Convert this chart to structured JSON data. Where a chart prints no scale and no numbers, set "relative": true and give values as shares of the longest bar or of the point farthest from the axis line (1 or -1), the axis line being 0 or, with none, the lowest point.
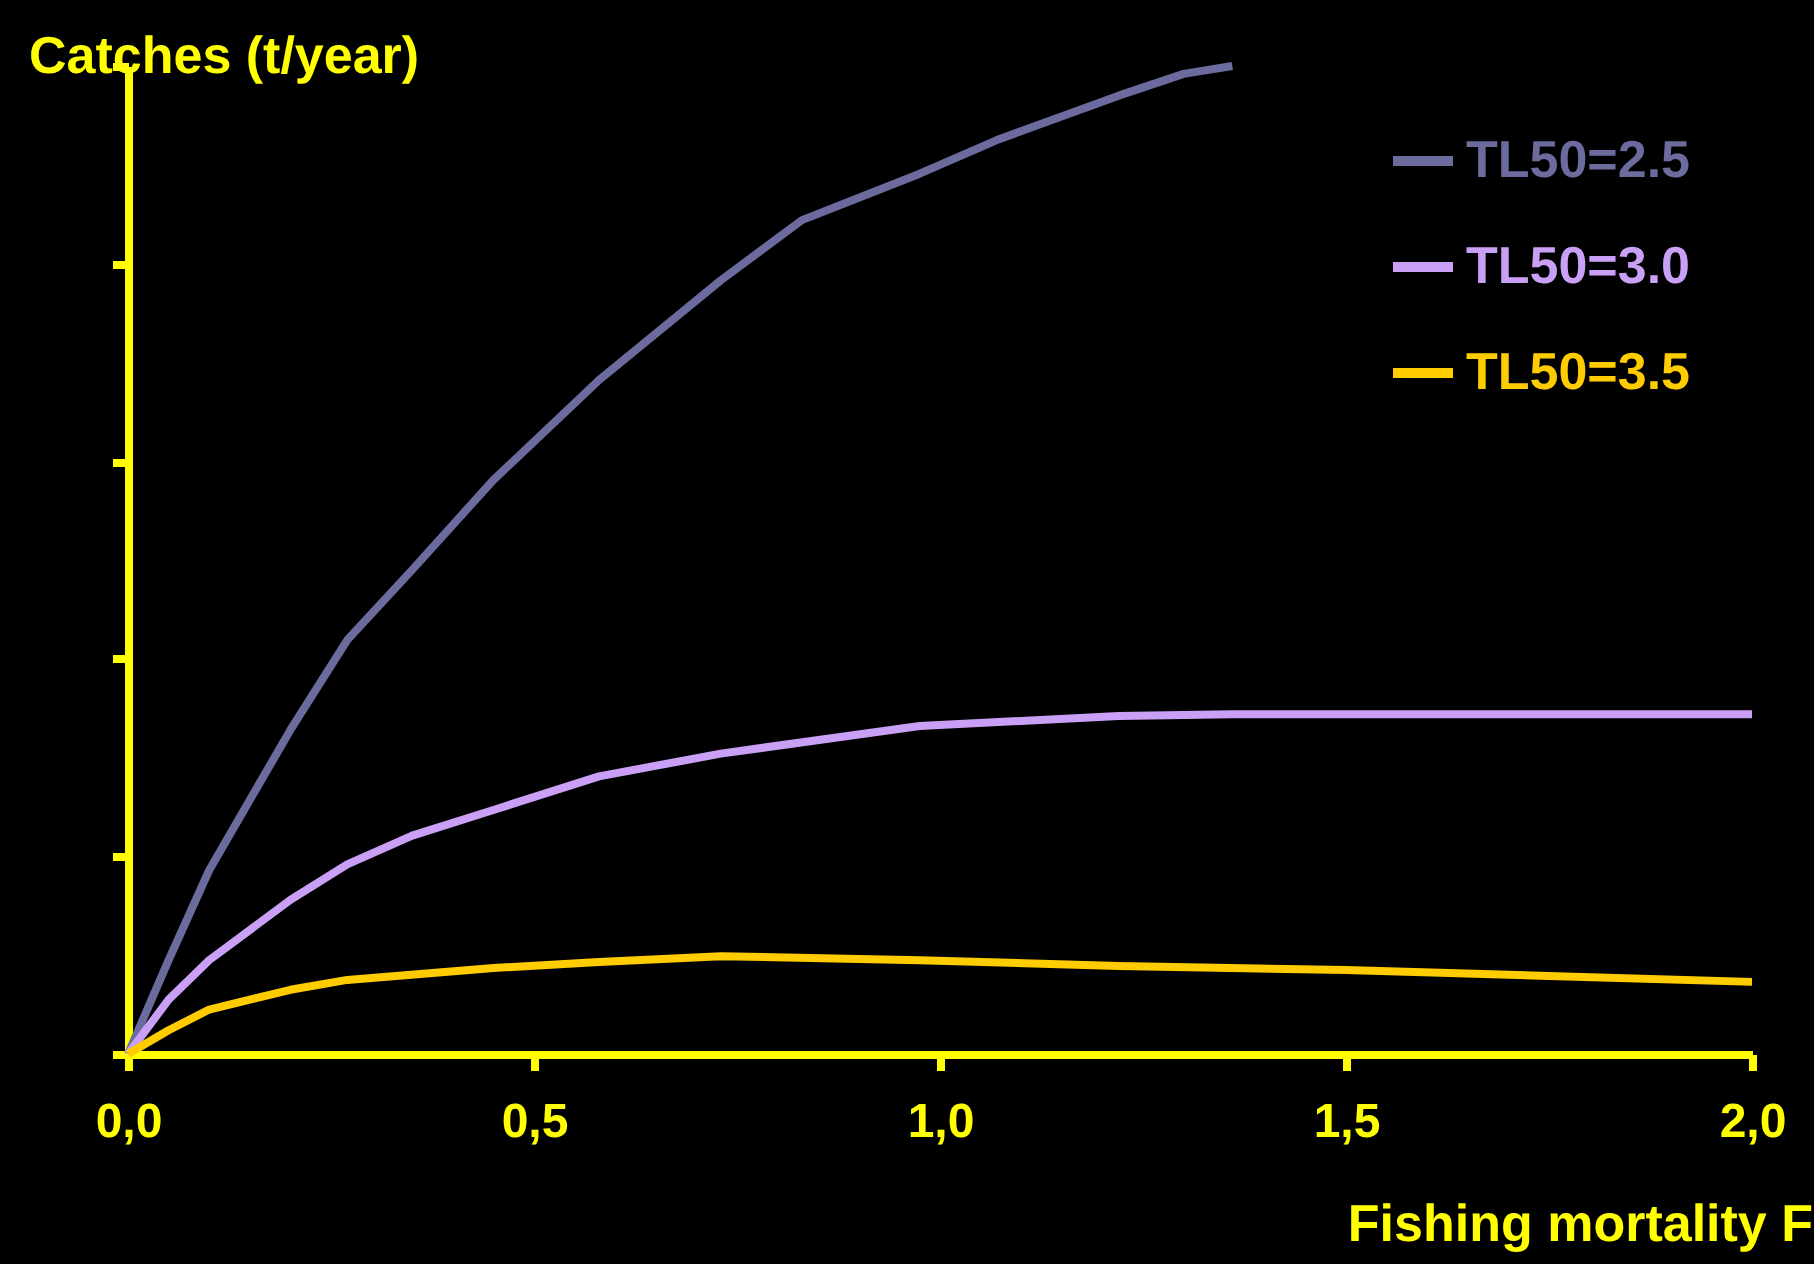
{
  "chart_data": {
    "type": "line",
    "relative": true,
    "ylabel": "Catches (t/year)",
    "xlabel": "Fishing mortality F",
    "xlim": [
      0,
      2
    ],
    "xticks": [
      {
        "value": 0,
        "label": "0,0"
      },
      {
        "value": 0.5,
        "label": "0,5"
      },
      {
        "value": 1,
        "label": "1,0"
      },
      {
        "value": 1.5,
        "label": "1,5"
      },
      {
        "value": 2,
        "label": "2,0"
      }
    ],
    "legend": "top right",
    "tick_labels": "x",
    "series": [
      {
        "name": "TL50=2.5",
        "color": "#6b6b9e",
        "x": [
          0,
          0.05,
          0.1,
          0.15,
          0.2,
          0.27,
          0.35,
          0.45,
          0.58,
          0.73,
          0.83,
          0.975,
          1.07,
          1.22,
          1.3,
          1.36
        ],
        "values": [
          0,
          0.095,
          0.186,
          0.257,
          0.328,
          0.419,
          0.49,
          0.581,
          0.682,
          0.783,
          0.844,
          0.891,
          0.925,
          0.97,
          0.992,
          1.0
        ]
      },
      {
        "name": "TL50=3.0",
        "color": "#c9a0f5",
        "x": [
          0,
          0.05,
          0.1,
          0.2,
          0.27,
          0.35,
          0.45,
          0.58,
          0.73,
          0.975,
          1.22,
          1.36,
          2.0
        ],
        "values": [
          0,
          0.055,
          0.095,
          0.156,
          0.192,
          0.221,
          0.247,
          0.281,
          0.304,
          0.332,
          0.342,
          0.344,
          0.344
        ]
      },
      {
        "name": "TL50=3.5",
        "color": "#ffcc00",
        "x": [
          0,
          0.05,
          0.1,
          0.2,
          0.27,
          0.45,
          0.58,
          0.73,
          0.975,
          1.22,
          1.5,
          1.75,
          2.0
        ],
        "values": [
          0,
          0.024,
          0.045,
          0.065,
          0.075,
          0.087,
          0.093,
          0.099,
          0.095,
          0.089,
          0.085,
          0.079,
          0.073
        ]
      }
    ]
  }
}
